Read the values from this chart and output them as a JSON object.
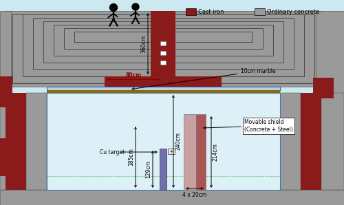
{
  "bg_color": "#cce8f0",
  "concrete_color": "#9a9a9a",
  "concrete_edge": "#444444",
  "cast_iron_color": "#8b1a1a",
  "marble_top_color": "#b8cfe0",
  "marble_bottom_color": "#8b6914",
  "floor_color": "#888888",
  "tunnel_color": "#ddf0f8",
  "cu_target_color": "#7070aa",
  "movable_pink": "#c8a0a0",
  "movable_red": "#aa5555",
  "legend_cast_iron": "Cast iron",
  "legend_concrete": "Ordinary concrete",
  "label_360cm": "360cm",
  "label_80cm": "80cm",
  "label_240cm": "240cm",
  "label_185cm": "185cm",
  "label_129cm": "129cm",
  "label_214cm": "214cm",
  "label_4x20cm": "4 x 20cm",
  "label_10cm_marble": "10cm marble",
  "label_movable": "Movable shield\n(Concrete + Steel)",
  "label_cu_target": "Cu target"
}
